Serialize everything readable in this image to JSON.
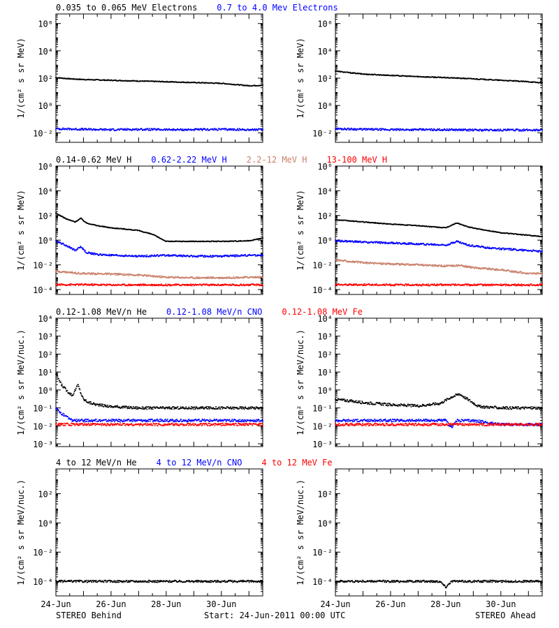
{
  "colors": {
    "black": "#000000",
    "blue": "#0000ff",
    "tan": "#c8806a",
    "red": "#ff0000"
  },
  "footer": {
    "left_label": "STEREO Behind",
    "center_label": "Start: 24-Jun-2011 00:00 UTC",
    "right_label": "STEREO Ahead"
  },
  "chart_data": [
    {
      "type": "scatter",
      "position": "row1-left",
      "ylabel": "1/(cm² s sr MeV)",
      "y_scale": "log",
      "ylim": [
        0.002,
        5000000
      ],
      "yticks": [
        0.01,
        1,
        100,
        10000,
        1000000
      ],
      "ytick_labels": [
        "10⁻²",
        "10⁰",
        "10²",
        "10⁴",
        "10⁶"
      ],
      "xlim": [
        0,
        7.5
      ],
      "xtick_labels": [],
      "legend": [
        {
          "text": "0.035 to 0.065 MeV Electrons",
          "color": "black"
        },
        {
          "text": "0.7 to 4.0 Mev Electrons",
          "color": "blue"
        }
      ],
      "series": [
        {
          "color": "black",
          "x": [
            0,
            0.5,
            1,
            2,
            3,
            4,
            5,
            6,
            7,
            7.5
          ],
          "y": [
            110,
            90,
            80,
            70,
            62,
            55,
            48,
            42,
            28,
            30
          ]
        },
        {
          "color": "blue",
          "x": [
            0,
            1,
            2,
            3,
            4,
            5,
            6,
            7,
            7.5
          ],
          "y": [
            0.02,
            0.018,
            0.017,
            0.018,
            0.017,
            0.017,
            0.018,
            0.017,
            0.017
          ]
        }
      ]
    },
    {
      "type": "scatter",
      "position": "row1-right",
      "ylabel": "1/(cm² s sr MeV)",
      "y_scale": "log",
      "ylim": [
        0.002,
        5000000
      ],
      "yticks": [
        0.01,
        1,
        100,
        10000,
        1000000
      ],
      "ytick_labels": [
        "10⁻²",
        "10⁰",
        "10²",
        "10⁴",
        "10⁶"
      ],
      "xlim": [
        0,
        7.5
      ],
      "xtick_labels": [],
      "legend": [],
      "series": [
        {
          "color": "black",
          "x": [
            0,
            0.3,
            1,
            2,
            3,
            4,
            5,
            6,
            7,
            7.5
          ],
          "y": [
            330,
            280,
            200,
            160,
            130,
            110,
            90,
            70,
            55,
            45
          ]
        },
        {
          "color": "blue",
          "x": [
            0,
            1,
            2,
            3,
            4,
            5,
            6,
            7,
            7.5
          ],
          "y": [
            0.02,
            0.018,
            0.017,
            0.017,
            0.017,
            0.016,
            0.016,
            0.016,
            0.016
          ]
        }
      ]
    },
    {
      "type": "scatter",
      "position": "row2-left",
      "ylabel": "1/(cm² s sr MeV)",
      "y_scale": "log",
      "ylim": [
        4e-05,
        1000000
      ],
      "yticks": [
        0.0001,
        0.01,
        1,
        100,
        10000,
        1000000
      ],
      "ytick_labels": [
        "10⁻⁴",
        "10⁻²",
        "10⁰",
        "10²",
        "10⁴",
        "10⁶"
      ],
      "xlim": [
        0,
        7.5
      ],
      "xtick_labels": [],
      "legend": [
        {
          "text": "0.14-0.62 MeV H",
          "color": "black"
        },
        {
          "text": "0.62-2.22 MeV H",
          "color": "blue"
        },
        {
          "text": "2.2-12 MeV H",
          "color": "tan"
        },
        {
          "text": "13-100 MeV H",
          "color": "red"
        }
      ],
      "series": [
        {
          "color": "black",
          "x": [
            0,
            0.4,
            0.7,
            0.9,
            1.1,
            1.5,
            2,
            2.5,
            3,
            3.5,
            4,
            5,
            6,
            7,
            7.3,
            7.5
          ],
          "y": [
            150,
            50,
            30,
            60,
            25,
            15,
            10,
            8,
            6,
            3,
            0.8,
            0.8,
            0.8,
            0.9,
            1.2,
            1.5
          ]
        },
        {
          "color": "blue",
          "x": [
            0,
            0.4,
            0.7,
            0.9,
            1.1,
            1.5,
            2,
            3,
            4,
            5,
            6,
            7,
            7.5
          ],
          "y": [
            0.9,
            0.35,
            0.15,
            0.3,
            0.1,
            0.07,
            0.06,
            0.05,
            0.06,
            0.05,
            0.05,
            0.06,
            0.06
          ]
        },
        {
          "color": "tan",
          "x": [
            0,
            1,
            2,
            3,
            4,
            5,
            6,
            7,
            7.5
          ],
          "y": [
            0.003,
            0.002,
            0.0018,
            0.0015,
            0.001,
            0.0009,
            0.0009,
            0.001,
            0.001
          ]
        },
        {
          "color": "red",
          "x": [
            0,
            1,
            2,
            3,
            4,
            5,
            6,
            7,
            7.5
          ],
          "y": [
            0.00025,
            0.00025,
            0.00024,
            0.00024,
            0.00024,
            0.00024,
            0.00024,
            0.00024,
            0.00024
          ]
        }
      ]
    },
    {
      "type": "scatter",
      "position": "row2-right",
      "ylabel": "1/(cm² s sr MeV)",
      "y_scale": "log",
      "ylim": [
        4e-05,
        1000000
      ],
      "yticks": [
        0.0001,
        0.01,
        1,
        100,
        10000,
        1000000
      ],
      "ytick_labels": [
        "10⁻⁴",
        "10⁻²",
        "10⁰",
        "10²",
        "10⁴",
        "10⁶"
      ],
      "xlim": [
        0,
        7.5
      ],
      "xtick_labels": [],
      "legend": [],
      "series": [
        {
          "color": "black",
          "x": [
            0,
            1,
            2,
            3,
            4,
            4.4,
            4.8,
            5.2,
            6,
            7,
            7.5
          ],
          "y": [
            45,
            30,
            20,
            15,
            10,
            25,
            12,
            8,
            4,
            2.5,
            2
          ]
        },
        {
          "color": "blue",
          "x": [
            0,
            1,
            2,
            3,
            4,
            4.4,
            4.8,
            5.5,
            6,
            7,
            7.5
          ],
          "y": [
            0.9,
            0.7,
            0.6,
            0.5,
            0.4,
            0.8,
            0.4,
            0.25,
            0.2,
            0.15,
            0.12
          ]
        },
        {
          "color": "tan",
          "x": [
            0,
            1,
            2,
            3,
            4,
            4.5,
            5,
            6,
            7,
            7.5
          ],
          "y": [
            0.025,
            0.015,
            0.012,
            0.01,
            0.008,
            0.009,
            0.006,
            0.004,
            0.002,
            0.002
          ]
        },
        {
          "color": "red",
          "x": [
            0,
            1,
            2,
            3,
            4,
            5,
            6,
            7,
            7.5
          ],
          "y": [
            0.00025,
            0.00025,
            0.00024,
            0.00024,
            0.00024,
            0.00024,
            0.00024,
            0.00024,
            0.00024
          ]
        }
      ]
    },
    {
      "type": "scatter",
      "position": "row3-left",
      "ylabel": "1/(cm² s sr MeV/nuc.)",
      "y_scale": "log",
      "ylim": [
        0.0007,
        10000
      ],
      "yticks": [
        0.001,
        0.01,
        0.1,
        1,
        10,
        100,
        1000,
        10000
      ],
      "ytick_labels": [
        "10⁻³",
        "10⁻²",
        "10⁻¹",
        "10⁰",
        "10¹",
        "10²",
        "10³",
        "10⁴"
      ],
      "xlim": [
        0,
        7.5
      ],
      "xtick_labels": [],
      "legend": [
        {
          "text": "0.12-1.08 MeV/n He",
          "color": "black"
        },
        {
          "text": "0.12-1.08 MeV/n CNO",
          "color": "blue"
        },
        {
          "text": "0.12-1.08 MeV Fe",
          "color": "red"
        }
      ],
      "series": [
        {
          "color": "black",
          "x": [
            0,
            0.2,
            0.4,
            0.6,
            0.8,
            0.9,
            1.0,
            1.2,
            1.5,
            2,
            3,
            4,
            5,
            6,
            7,
            7.5
          ],
          "y": [
            8,
            2,
            0.9,
            0.5,
            2,
            0.7,
            0.3,
            0.2,
            0.15,
            0.12,
            0.1,
            0.1,
            0.1,
            0.1,
            0.1,
            0.1
          ]
        },
        {
          "color": "blue",
          "x": [
            0,
            0.2,
            0.4,
            0.6,
            1,
            2,
            3,
            4,
            5,
            6,
            7,
            7.5
          ],
          "y": [
            0.1,
            0.05,
            0.03,
            0.02,
            0.02,
            0.02,
            0.02,
            0.02,
            0.02,
            0.02,
            0.02,
            0.02
          ]
        },
        {
          "color": "red",
          "x": [
            0,
            1,
            2,
            3,
            4,
            5,
            6,
            7,
            7.5
          ],
          "y": [
            0.012,
            0.012,
            0.012,
            0.012,
            0.012,
            0.012,
            0.012,
            0.012,
            0.012
          ]
        }
      ]
    },
    {
      "type": "scatter",
      "position": "row3-right",
      "ylabel": "1/(cm² s sr MeV/nuc.)",
      "y_scale": "log",
      "ylim": [
        0.0007,
        10000
      ],
      "yticks": [
        0.001,
        0.01,
        0.1,
        1,
        10,
        100,
        1000,
        10000
      ],
      "ytick_labels": [
        "10⁻³",
        "10⁻²",
        "10⁻¹",
        "10⁰",
        "10¹",
        "10²",
        "10³",
        "10⁴"
      ],
      "xlim": [
        0,
        7.5
      ],
      "xtick_labels": [],
      "legend": [],
      "series": [
        {
          "color": "black",
          "x": [
            0,
            0.5,
            1,
            2,
            3,
            3.8,
            4.2,
            4.5,
            4.8,
            5.2,
            6,
            7,
            7.5
          ],
          "y": [
            0.3,
            0.25,
            0.2,
            0.15,
            0.13,
            0.18,
            0.4,
            0.6,
            0.3,
            0.12,
            0.1,
            0.1,
            0.1
          ]
        },
        {
          "color": "blue",
          "x": [
            0,
            1,
            2,
            3,
            4,
            4.2,
            4.4,
            5,
            6,
            7,
            7.5
          ],
          "y": [
            0.02,
            0.02,
            0.02,
            0.02,
            0.02,
            0.008,
            0.02,
            0.02,
            0.012,
            0.012,
            0.012
          ]
        },
        {
          "color": "red",
          "x": [
            0,
            1,
            2,
            3,
            4,
            5,
            6,
            7,
            7.5
          ],
          "y": [
            0.012,
            0.012,
            0.012,
            0.012,
            0.012,
            0.012,
            0.012,
            0.012,
            0.012
          ]
        }
      ]
    },
    {
      "type": "scatter",
      "position": "row4-left",
      "ylabel": "1/(cm² s sr MeV/nuc.)",
      "y_scale": "log",
      "ylim": [
        1e-05,
        5000
      ],
      "yticks": [
        0.0001,
        0.01,
        1,
        100
      ],
      "ytick_labels": [
        "10⁻⁴",
        "10⁻²",
        "10⁰",
        "10²"
      ],
      "xlim": [
        0,
        7.5
      ],
      "xtick_labels": [
        "24-Jun",
        "26-Jun",
        "28-Jun",
        "30-Jun"
      ],
      "xtick_values": [
        0,
        2,
        4,
        6
      ],
      "legend": [
        {
          "text": "4 to 12 MeV/n He",
          "color": "black"
        },
        {
          "text": "4 to 12 MeV/n CNO",
          "color": "blue"
        },
        {
          "text": "4 to 12 MeV Fe",
          "color": "red"
        }
      ],
      "series": [
        {
          "color": "black",
          "x": [
            0,
            1,
            2,
            3,
            4,
            5,
            6,
            7,
            7.5
          ],
          "y": [
            0.0001,
            0.0001,
            0.0001,
            0.0001,
            0.0001,
            0.0001,
            0.0001,
            0.0001,
            0.0001
          ]
        }
      ]
    },
    {
      "type": "scatter",
      "position": "row4-right",
      "ylabel": "1/(cm² s sr MeV/nuc.)",
      "y_scale": "log",
      "ylim": [
        1e-05,
        5000
      ],
      "yticks": [
        0.0001,
        0.01,
        1,
        100
      ],
      "ytick_labels": [
        "10⁻⁴",
        "10⁻²",
        "10⁰",
        "10²"
      ],
      "xlim": [
        0,
        7.5
      ],
      "xtick_labels": [
        "24-Jun",
        "26-Jun",
        "28-Jun",
        "30-Jun"
      ],
      "xtick_values": [
        0,
        2,
        4,
        6
      ],
      "legend": [],
      "series": [
        {
          "color": "black",
          "x": [
            0,
            1,
            2,
            3,
            3.8,
            4.0,
            4.2,
            5,
            6,
            7,
            7.5
          ],
          "y": [
            0.0001,
            0.0001,
            0.0001,
            0.0001,
            0.0001,
            4e-05,
            0.0001,
            0.0001,
            0.0001,
            0.0001,
            0.0001
          ]
        }
      ]
    }
  ]
}
